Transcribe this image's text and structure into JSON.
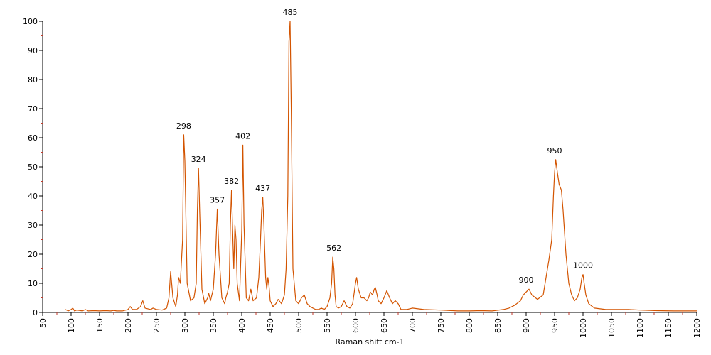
{
  "chart_data": {
    "type": "line",
    "title": "",
    "xlabel": "Raman shift cm-1",
    "ylabel": "",
    "xlim": [
      50,
      1200
    ],
    "ylim": [
      0,
      100
    ],
    "grid": false,
    "line_color": "#d35400",
    "x_ticks": [
      "50",
      "100",
      "150",
      "200",
      "250",
      "300",
      "350",
      "400",
      "450",
      "500",
      "550",
      "600",
      "650",
      "700",
      "750",
      "800",
      "850",
      "900",
      "950",
      "1000",
      "1050",
      "1100",
      "1150",
      "1200"
    ],
    "y_ticks": [
      "0",
      "10",
      "20",
      "30",
      "40",
      "50",
      "60",
      "70",
      "80",
      "90",
      "100"
    ],
    "peak_labels": [
      {
        "x": 298,
        "y": 61,
        "text": "298"
      },
      {
        "x": 324,
        "y": 49.5,
        "text": "324"
      },
      {
        "x": 357,
        "y": 35.5,
        "text": "357"
      },
      {
        "x": 382,
        "y": 42,
        "text": "382"
      },
      {
        "x": 402,
        "y": 57.5,
        "text": "402"
      },
      {
        "x": 437,
        "y": 39.5,
        "text": "437"
      },
      {
        "x": 485,
        "y": 100,
        "text": "485"
      },
      {
        "x": 562,
        "y": 19,
        "text": "562"
      },
      {
        "x": 900,
        "y": 8,
        "text": "900"
      },
      {
        "x": 950,
        "y": 52.5,
        "text": "950"
      },
      {
        "x": 1000,
        "y": 13,
        "text": "1000"
      }
    ],
    "series": [
      {
        "x": [
          90,
          95,
          100,
          103,
          106,
          110,
          120,
          125,
          130,
          140,
          150,
          160,
          170,
          175,
          180,
          190,
          200,
          204,
          208,
          215,
          222,
          226,
          230,
          240,
          244,
          250,
          260,
          268,
          272,
          275,
          279,
          284,
          287,
          289,
          292,
          296,
          298,
          300,
          304,
          310,
          316,
          320,
          322,
          324,
          326,
          330,
          335,
          340,
          342,
          345,
          350,
          354,
          357,
          360,
          365,
          370,
          372,
          375,
          378,
          380,
          382,
          384,
          386,
          388,
          390,
          392,
          396,
          400,
          402,
          404,
          408,
          412,
          416,
          420,
          426,
          430,
          433,
          435,
          437,
          439,
          442,
          444,
          446,
          448,
          450,
          455,
          460,
          464,
          470,
          475,
          478,
          481,
          483,
          485,
          487,
          490,
          495,
          500,
          505,
          510,
          515,
          520,
          525,
          530,
          535,
          540,
          545,
          550,
          555,
          558,
          560,
          562,
          564,
          566,
          570,
          575,
          580,
          585,
          590,
          595,
          600,
          602,
          605,
          610,
          615,
          620,
          623,
          626,
          630,
          633,
          635,
          638,
          640,
          645,
          650,
          655,
          660,
          665,
          670,
          675,
          680,
          690,
          700,
          720,
          750,
          780,
          800,
          820,
          840,
          860,
          870,
          880,
          890,
          895,
          900,
          905,
          910,
          920,
          930,
          935,
          940,
          945,
          948,
          950,
          952,
          955,
          958,
          960,
          962,
          965,
          970,
          975,
          980,
          985,
          990,
          995,
          998,
          1000,
          1002,
          1005,
          1010,
          1020,
          1040,
          1060,
          1080,
          1100,
          1130,
          1160,
          1200
        ],
        "y": [
          1,
          0.5,
          1,
          1.5,
          0.5,
          0.8,
          0.5,
          1,
          0.5,
          0.6,
          0.5,
          0.6,
          0.5,
          0.7,
          0.5,
          0.5,
          1,
          2,
          1,
          1,
          2,
          4,
          1.5,
          1,
          1.5,
          1,
          0.8,
          1.5,
          5,
          14,
          5,
          2,
          6,
          12,
          10,
          25,
          61,
          52,
          10,
          4,
          5,
          10,
          35,
          49.5,
          35,
          8,
          3,
          5,
          6.5,
          4,
          8,
          20,
          35.5,
          20,
          5,
          3,
          5,
          7,
          10,
          30,
          42,
          28,
          15,
          30,
          25,
          10,
          4,
          28,
          57.5,
          30,
          5,
          4,
          8,
          4,
          5,
          12,
          25,
          35,
          39.5,
          30,
          12,
          8,
          12,
          9,
          4,
          2,
          3,
          4.5,
          3,
          6,
          15,
          40,
          93,
          100,
          70,
          15,
          4,
          3,
          5,
          6,
          3,
          2,
          1.5,
          1,
          1,
          1.5,
          1,
          2,
          5,
          10,
          19,
          15,
          6,
          2,
          1.5,
          2,
          4,
          2,
          1.5,
          3,
          10,
          12,
          8,
          5,
          5,
          4,
          5,
          7,
          6,
          8,
          8.5,
          6,
          4,
          3,
          5,
          7.5,
          5,
          3,
          4,
          3,
          1,
          1,
          1.5,
          1,
          0.8,
          0.5,
          0.5,
          0.6,
          0.5,
          1,
          1.5,
          2.5,
          4,
          6,
          7,
          8,
          6,
          4.5,
          6,
          12,
          18,
          25,
          40,
          48,
          52.5,
          48,
          44,
          43,
          42,
          35,
          20,
          10,
          6,
          4,
          5,
          8,
          12,
          13,
          10,
          6,
          3,
          1.5,
          1,
          1,
          1,
          0.8,
          0.6,
          0.5,
          0.5
        ]
      }
    ]
  }
}
